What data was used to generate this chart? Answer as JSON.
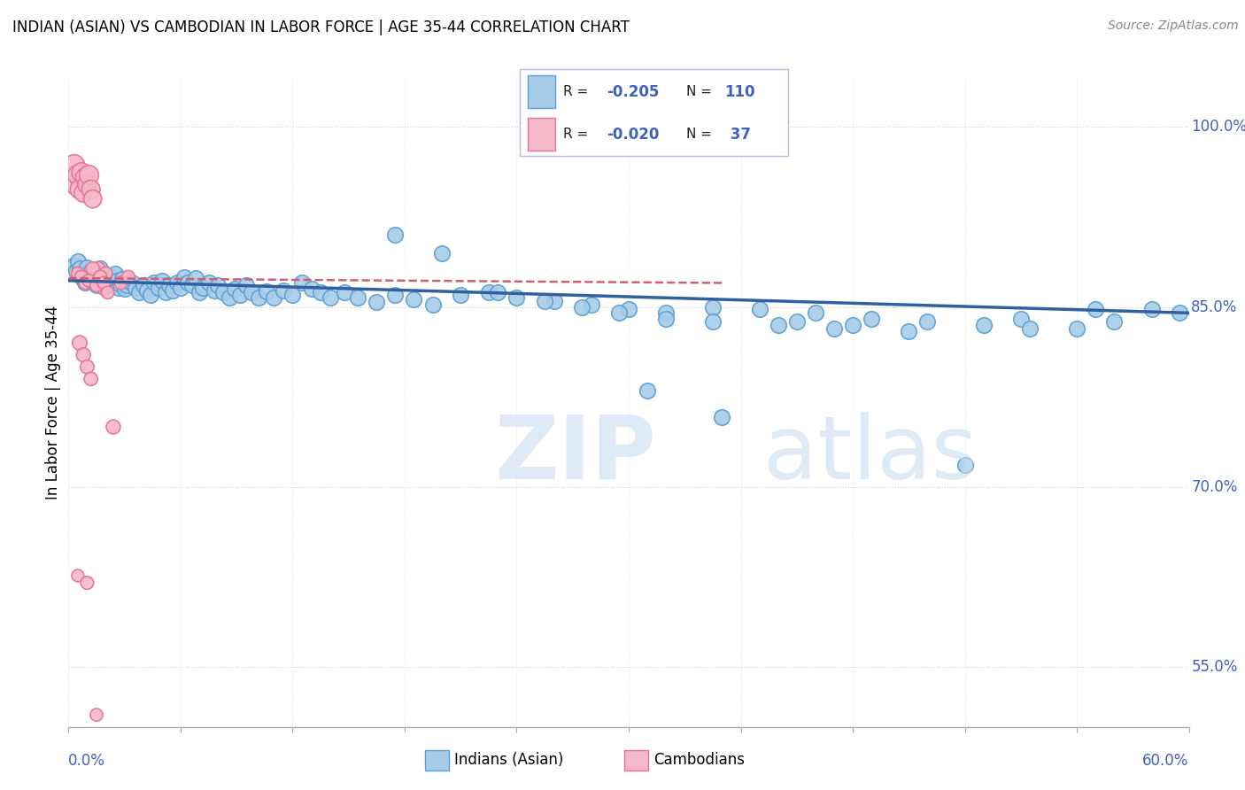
{
  "title": "INDIAN (ASIAN) VS CAMBODIAN IN LABOR FORCE | AGE 35-44 CORRELATION CHART",
  "source": "Source: ZipAtlas.com",
  "ylabel": "In Labor Force | Age 35-44",
  "xlim": [
    0.0,
    0.6
  ],
  "ylim": [
    0.5,
    1.04
  ],
  "xticks": [
    0.0,
    0.06,
    0.12,
    0.18,
    0.24,
    0.3,
    0.36,
    0.42,
    0.48,
    0.54,
    0.6
  ],
  "yticks_right": [
    0.55,
    0.7,
    0.85,
    1.0
  ],
  "ytick_labels_right": [
    "55.0%",
    "70.0%",
    "85.0%",
    "100.0%"
  ],
  "blue_color": "#a8cce8",
  "pink_color": "#f4b8c8",
  "blue_edge_color": "#5a9fd4",
  "pink_edge_color": "#e87090",
  "blue_line_color": "#3060a0",
  "pink_line_color": "#d06070",
  "legend_R_blue": "-0.205",
  "legend_N_blue": "110",
  "legend_R_pink": "-0.020",
  "legend_N_pink": "37",
  "blue_trend_x": [
    0.0,
    0.6
  ],
  "blue_trend_y": [
    0.872,
    0.845
  ],
  "pink_trend_x": [
    0.0,
    0.35
  ],
  "pink_trend_y": [
    0.874,
    0.87
  ],
  "blue_x": [
    0.003,
    0.004,
    0.005,
    0.006,
    0.007,
    0.008,
    0.009,
    0.01,
    0.011,
    0.012,
    0.013,
    0.014,
    0.015,
    0.016,
    0.017,
    0.018,
    0.019,
    0.02,
    0.021,
    0.022,
    0.023,
    0.024,
    0.025,
    0.026,
    0.027,
    0.028,
    0.029,
    0.03,
    0.031,
    0.032,
    0.034,
    0.036,
    0.038,
    0.04,
    0.042,
    0.044,
    0.046,
    0.048,
    0.05,
    0.052,
    0.054,
    0.056,
    0.058,
    0.06,
    0.062,
    0.064,
    0.066,
    0.068,
    0.07,
    0.072,
    0.075,
    0.078,
    0.08,
    0.083,
    0.086,
    0.089,
    0.092,
    0.095,
    0.098,
    0.102,
    0.106,
    0.11,
    0.115,
    0.12,
    0.125,
    0.13,
    0.135,
    0.14,
    0.148,
    0.155,
    0.165,
    0.175,
    0.185,
    0.195,
    0.21,
    0.225,
    0.24,
    0.26,
    0.28,
    0.3,
    0.32,
    0.345,
    0.37,
    0.4,
    0.43,
    0.46,
    0.49,
    0.51,
    0.54,
    0.56,
    0.58,
    0.595,
    0.31,
    0.35,
    0.39,
    0.42,
    0.45,
    0.48,
    0.515,
    0.55,
    0.175,
    0.2,
    0.23,
    0.255,
    0.275,
    0.295,
    0.32,
    0.345,
    0.38,
    0.41
  ],
  "blue_y": [
    0.885,
    0.88,
    0.888,
    0.882,
    0.875,
    0.878,
    0.87,
    0.883,
    0.876,
    0.88,
    0.872,
    0.875,
    0.868,
    0.878,
    0.882,
    0.875,
    0.87,
    0.876,
    0.872,
    0.868,
    0.875,
    0.87,
    0.878,
    0.872,
    0.866,
    0.869,
    0.873,
    0.865,
    0.868,
    0.872,
    0.87,
    0.866,
    0.862,
    0.868,
    0.864,
    0.86,
    0.87,
    0.866,
    0.872,
    0.862,
    0.868,
    0.864,
    0.87,
    0.866,
    0.875,
    0.87,
    0.868,
    0.874,
    0.862,
    0.866,
    0.87,
    0.864,
    0.868,
    0.862,
    0.858,
    0.865,
    0.86,
    0.868,
    0.862,
    0.858,
    0.863,
    0.858,
    0.864,
    0.86,
    0.87,
    0.865,
    0.862,
    0.858,
    0.862,
    0.858,
    0.854,
    0.86,
    0.856,
    0.852,
    0.86,
    0.862,
    0.858,
    0.855,
    0.852,
    0.848,
    0.845,
    0.85,
    0.848,
    0.845,
    0.84,
    0.838,
    0.835,
    0.84,
    0.832,
    0.838,
    0.848,
    0.845,
    0.78,
    0.758,
    0.838,
    0.835,
    0.83,
    0.718,
    0.832,
    0.848,
    0.91,
    0.895,
    0.862,
    0.855,
    0.85,
    0.845,
    0.84,
    0.838,
    0.835,
    0.832
  ],
  "pink_x": [
    0.003,
    0.004,
    0.005,
    0.006,
    0.007,
    0.008,
    0.009,
    0.01,
    0.011,
    0.012,
    0.013,
    0.014,
    0.015,
    0.016,
    0.017,
    0.018,
    0.019,
    0.02,
    0.005,
    0.007,
    0.009,
    0.011,
    0.013,
    0.015,
    0.017,
    0.019,
    0.021,
    0.006,
    0.008,
    0.01,
    0.012,
    0.024,
    0.028,
    0.032,
    0.005,
    0.01,
    0.015
  ],
  "pink_y": [
    0.968,
    0.952,
    0.96,
    0.948,
    0.962,
    0.945,
    0.958,
    0.952,
    0.96,
    0.948,
    0.94,
    0.878,
    0.87,
    0.882,
    0.875,
    0.87,
    0.865,
    0.878,
    0.878,
    0.875,
    0.87,
    0.872,
    0.882,
    0.868,
    0.875,
    0.87,
    0.862,
    0.82,
    0.81,
    0.8,
    0.79,
    0.75,
    0.87,
    0.875,
    0.626,
    0.62,
    0.51
  ],
  "pink_sizes": [
    300,
    280,
    260,
    240,
    250,
    220,
    240,
    230,
    245,
    225,
    210,
    120,
    115,
    120,
    115,
    110,
    108,
    112,
    110,
    115,
    108,
    112,
    118,
    112,
    115,
    108,
    105,
    140,
    130,
    125,
    120,
    130,
    110,
    115,
    100,
    110,
    105
  ]
}
